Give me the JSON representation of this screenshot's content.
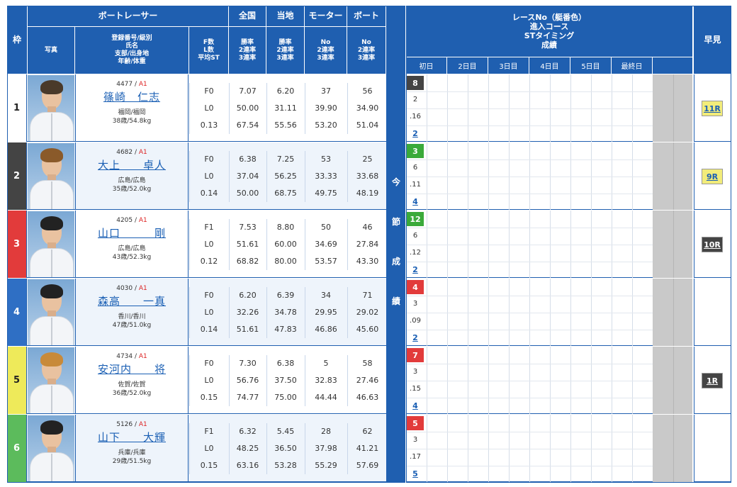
{
  "colors": {
    "header": "#1f5fb0",
    "row_even": "#eef4fb",
    "link": "#1a5fb4",
    "class": "#d22222"
  },
  "header": {
    "waku": "枠",
    "racer_group": "ボートレーサー",
    "photo": "写真",
    "info": "登録番号/級別\n氏名\n支部/出身地\n年齢/体重",
    "fl": "F数\nL数\n平均ST",
    "zenkoku": "全国",
    "touchi": "当地",
    "motor": "モーター",
    "boat": "ボート",
    "rate_sub": "勝率\n2連率\n3連率",
    "no_sub": "No\n2連率\n3連率",
    "race_info": "レースNo（艇番色）\n進入コース\nSTタイミング\n成績",
    "days": [
      "初日",
      "2日目",
      "3日目",
      "4日目",
      "5日目",
      "最終日"
    ],
    "konsetsu": [
      "今",
      "節",
      "成",
      "績"
    ],
    "hayami": "早見"
  },
  "racers": [
    {
      "waku": "1",
      "waku_color": "#ffffff",
      "waku_text": "#222222",
      "reg": "4477",
      "cls": "A1",
      "name": "篠崎　仁志",
      "branch": "福岡/福岡",
      "age": "38歳/54.8kg",
      "f": "F0",
      "l": "L0",
      "st": "0.13",
      "zen": [
        "7.07",
        "50.00",
        "67.54"
      ],
      "tou": [
        "6.20",
        "31.11",
        "55.56"
      ],
      "mot": [
        "37",
        "39.90",
        "53.20"
      ],
      "boa": [
        "56",
        "34.90",
        "51.04"
      ],
      "race_no": "8",
      "race_color": "#444444",
      "course": "2",
      "timing": ".16",
      "result": "2",
      "hayami": "11R",
      "hayami_bg": "#f2ec7a",
      "hayami_fg": "#1a5fb4",
      "hair": "#4a3a2a"
    },
    {
      "waku": "2",
      "waku_color": "#444444",
      "waku_text": "#ffffff",
      "reg": "4682",
      "cls": "A1",
      "name": "大上　　卓人",
      "branch": "広島/広島",
      "age": "35歳/52.0kg",
      "f": "F0",
      "l": "L0",
      "st": "0.14",
      "zen": [
        "6.38",
        "37.04",
        "50.00"
      ],
      "tou": [
        "7.25",
        "56.25",
        "68.75"
      ],
      "mot": [
        "53",
        "33.33",
        "49.75"
      ],
      "boa": [
        "25",
        "33.68",
        "48.19"
      ],
      "race_no": "3",
      "race_color": "#3aaa3a",
      "course": "6",
      "timing": ".11",
      "result": "4",
      "hayami": "9R",
      "hayami_bg": "#f2ec7a",
      "hayami_fg": "#1a5fb4",
      "hair": "#8a5a2a"
    },
    {
      "waku": "3",
      "waku_color": "#e23b3b",
      "waku_text": "#ffffff",
      "reg": "4205",
      "cls": "A1",
      "name": "山口　　　剛",
      "branch": "広島/広島",
      "age": "43歳/52.3kg",
      "f": "F1",
      "l": "L0",
      "st": "0.12",
      "zen": [
        "7.53",
        "51.61",
        "68.82"
      ],
      "tou": [
        "8.80",
        "60.00",
        "80.00"
      ],
      "mot": [
        "50",
        "34.69",
        "53.57"
      ],
      "boa": [
        "46",
        "27.84",
        "43.30"
      ],
      "race_no": "12",
      "race_color": "#3aaa3a",
      "course": "6",
      "timing": ".12",
      "result": "2",
      "hayami": "10R",
      "hayami_bg": "#444444",
      "hayami_fg": "#ffffff",
      "hair": "#222222"
    },
    {
      "waku": "4",
      "waku_color": "#2f6fc4",
      "waku_text": "#ffffff",
      "reg": "4030",
      "cls": "A1",
      "name": "森高　　一真",
      "branch": "香川/香川",
      "age": "47歳/51.0kg",
      "f": "F0",
      "l": "L0",
      "st": "0.14",
      "zen": [
        "6.20",
        "32.26",
        "51.61"
      ],
      "tou": [
        "6.39",
        "34.78",
        "47.83"
      ],
      "mot": [
        "34",
        "29.95",
        "46.86"
      ],
      "boa": [
        "71",
        "29.02",
        "45.60"
      ],
      "race_no": "4",
      "race_color": "#e23b3b",
      "course": "3",
      "timing": ".09",
      "result": "2",
      "hayami": "",
      "hayami_bg": "",
      "hayami_fg": "",
      "hair": "#222222"
    },
    {
      "waku": "5",
      "waku_color": "#eeea5a",
      "waku_text": "#222222",
      "reg": "4734",
      "cls": "A1",
      "name": "安河内　　将",
      "branch": "佐賀/佐賀",
      "age": "36歳/52.0kg",
      "f": "F0",
      "l": "L0",
      "st": "0.15",
      "zen": [
        "7.30",
        "56.76",
        "74.77"
      ],
      "tou": [
        "6.38",
        "37.50",
        "75.00"
      ],
      "mot": [
        "5",
        "32.83",
        "44.44"
      ],
      "boa": [
        "58",
        "27.46",
        "46.63"
      ],
      "race_no": "7",
      "race_color": "#e23b3b",
      "course": "3",
      "timing": ".15",
      "result": "4",
      "hayami": "1R",
      "hayami_bg": "#444444",
      "hayami_fg": "#ffffff",
      "hair": "#c88a3a"
    },
    {
      "waku": "6",
      "waku_color": "#5cbb5c",
      "waku_text": "#ffffff",
      "reg": "5126",
      "cls": "A1",
      "name": "山下　　大輝",
      "branch": "兵庫/兵庫",
      "age": "29歳/51.5kg",
      "f": "F1",
      "l": "L0",
      "st": "0.15",
      "zen": [
        "6.32",
        "48.25",
        "63.16"
      ],
      "tou": [
        "5.45",
        "36.50",
        "53.28"
      ],
      "mot": [
        "28",
        "37.98",
        "55.29"
      ],
      "boa": [
        "62",
        "41.21",
        "57.69"
      ],
      "race_no": "5",
      "race_color": "#e23b3b",
      "course": "3",
      "timing": ".17",
      "result": "5",
      "hayami": "",
      "hayami_bg": "",
      "hayami_fg": "",
      "hair": "#222222"
    }
  ]
}
